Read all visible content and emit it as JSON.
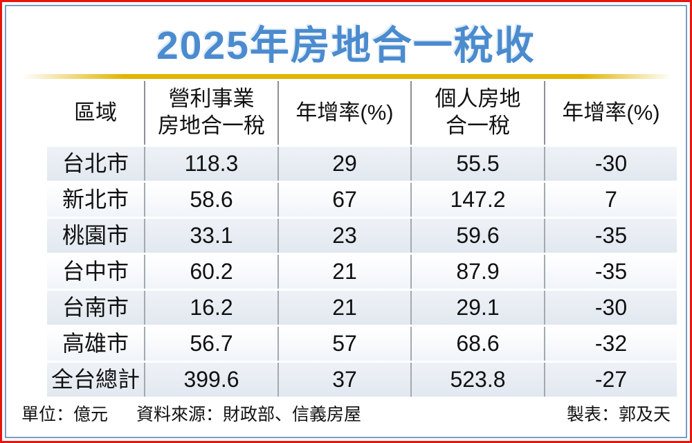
{
  "title": "2025年房地合一稅收",
  "table": {
    "headers": [
      {
        "lines": [
          "區域",
          ""
        ]
      },
      {
        "lines": [
          "營利事業",
          "房地合一稅"
        ]
      },
      {
        "lines": [
          "年增率(%)",
          ""
        ]
      },
      {
        "lines": [
          "個人房地",
          "合一稅"
        ]
      },
      {
        "lines": [
          "年增率(%)",
          ""
        ]
      }
    ],
    "rows": [
      {
        "cells": [
          "台北市",
          "118.3",
          "29",
          "55.5",
          "-30"
        ]
      },
      {
        "cells": [
          "新北市",
          "58.6",
          "67",
          "147.2",
          "7"
        ]
      },
      {
        "cells": [
          "桃園市",
          "33.1",
          "23",
          "59.6",
          "-35"
        ]
      },
      {
        "cells": [
          "台中市",
          "60.2",
          "21",
          "87.9",
          "-35"
        ]
      },
      {
        "cells": [
          "台南市",
          "16.2",
          "21",
          "29.1",
          "-30"
        ]
      },
      {
        "cells": [
          "高雄市",
          "56.7",
          "57",
          "68.6",
          "-32"
        ]
      },
      {
        "cells": [
          "全台總計",
          "399.6",
          "37",
          "523.8",
          "-27"
        ]
      }
    ]
  },
  "footer": {
    "unit": "單位：億元",
    "source": "資料來源：財政部、信義房屋",
    "credit": "製表：郭及天"
  },
  "colors": {
    "title_blue": "#4b8bce",
    "gold_rule": "#e0b400",
    "frame_red": "#e8140e",
    "frame_blue": "#7b9dc0",
    "row_blue": "#e6ecf3",
    "divider_gray": "#8a9097"
  },
  "chart_data": {
    "type": "table",
    "title": "2025年房地合一稅收",
    "unit": "億元",
    "columns": [
      "區域",
      "營利事業房地合一稅",
      "年增率(%)",
      "個人房地合一稅",
      "年增率(%)"
    ],
    "rows": [
      [
        "台北市",
        118.3,
        29,
        55.5,
        -30
      ],
      [
        "新北市",
        58.6,
        67,
        147.2,
        7
      ],
      [
        "桃園市",
        33.1,
        23,
        59.6,
        -35
      ],
      [
        "台中市",
        60.2,
        21,
        87.9,
        -35
      ],
      [
        "台南市",
        16.2,
        21,
        29.1,
        -30
      ],
      [
        "高雄市",
        56.7,
        57,
        68.6,
        -32
      ],
      [
        "全台總計",
        399.6,
        37,
        523.8,
        -27
      ]
    ],
    "source": "財政部、信義房屋",
    "credit": "郭及天"
  }
}
